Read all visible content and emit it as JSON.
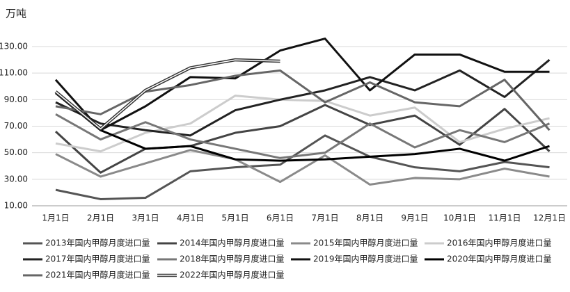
{
  "chart_data": {
    "type": "line",
    "unit_label": "万吨",
    "categories": [
      "1月1日",
      "2月1日",
      "3月1日",
      "4月1日",
      "5月1日",
      "6月1日",
      "7月1日",
      "8月1日",
      "9月1日",
      "10月1日",
      "11月1日",
      "12月1日"
    ],
    "series": [
      {
        "name": "2013年国内甲醇月度进口量",
        "color": "#555555",
        "values": [
          22,
          15,
          16,
          36,
          39,
          41,
          63,
          47,
          39,
          36,
          43,
          39
        ]
      },
      {
        "name": "2014年国内甲醇月度进口量",
        "color": "#444444",
        "values": [
          66,
          35,
          53,
          55,
          65,
          70,
          86,
          71,
          78,
          56,
          83,
          51
        ]
      },
      {
        "name": "2015年国内甲醇月度进口量",
        "color": "#8a8a8a",
        "values": [
          49,
          32,
          42,
          52,
          45,
          28,
          48,
          26,
          31,
          30,
          38,
          32
        ]
      },
      {
        "name": "2016年国内甲醇月度进口量",
        "color": "#cccccc",
        "values": [
          57,
          51,
          65,
          72,
          93,
          90,
          89,
          78,
          84,
          58,
          68,
          76
        ]
      },
      {
        "name": "2017年国内甲醇月度进口量",
        "color": "#222222",
        "values": [
          88,
          72,
          67,
          63,
          82,
          90,
          97,
          107,
          97,
          112,
          92,
          120
        ]
      },
      {
        "name": "2018年国内甲醇月度进口量",
        "color": "#777777",
        "values": [
          79,
          60,
          73,
          60,
          53,
          46,
          50,
          72,
          54,
          67,
          58,
          72
        ]
      },
      {
        "name": "2019年国内甲醇月度进口量",
        "color": "#111111",
        "values": [
          105,
          67,
          85,
          107,
          106,
          127,
          136,
          97,
          124,
          124,
          111,
          111
        ]
      },
      {
        "name": "2020年国内甲醇月度进口量",
        "color": "#000000",
        "values": [
          95,
          67,
          53,
          55,
          45,
          44,
          45,
          47,
          49,
          53,
          44,
          55
        ]
      },
      {
        "name": "2021年国内甲醇月度进口量",
        "color": "#666666",
        "values": [
          85,
          79,
          96,
          101,
          108,
          112,
          88,
          103,
          88,
          85,
          105,
          67
        ]
      },
      {
        "name": "2022年国内甲醇月度进口量",
        "color": "#333333",
        "values": [
          96,
          68,
          97,
          114,
          120,
          119,
          null,
          null,
          null,
          null,
          null,
          null
        ]
      }
    ],
    "ylim": [
      10,
      130
    ],
    "yticks": [
      {
        "value": 10,
        "label": "10.00"
      },
      {
        "value": 30,
        "label": "30.00"
      },
      {
        "value": 50,
        "label": "50.00"
      },
      {
        "value": 70,
        "label": "70.00"
      },
      {
        "value": 90,
        "label": "90.00"
      },
      {
        "value": 110,
        "label": "110.00"
      },
      {
        "value": 130,
        "label": "130.00"
      }
    ],
    "grid": true
  }
}
